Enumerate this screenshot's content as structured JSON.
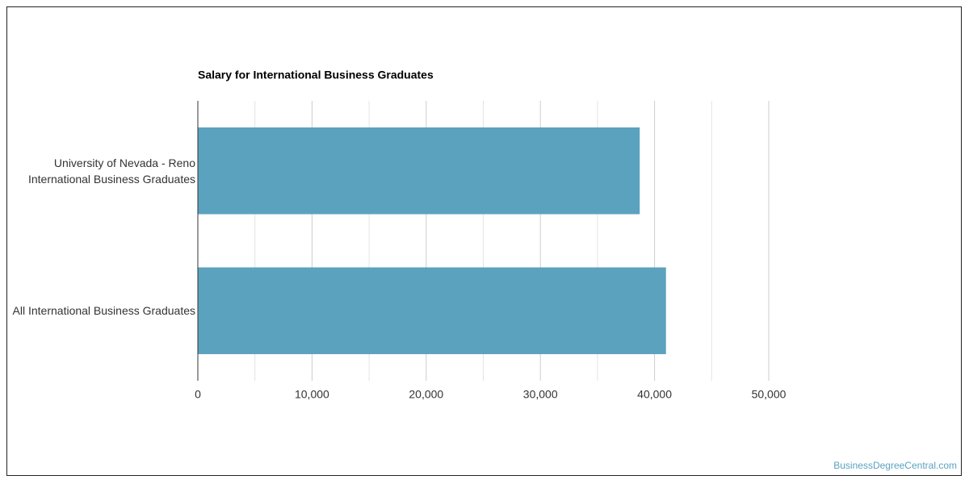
{
  "chart_data": {
    "type": "bar",
    "orientation": "horizontal",
    "title": "Salary for International Business Graduates",
    "categories": [
      "University of Nevada - Reno International Business Graduates",
      "All International Business Graduates"
    ],
    "values": [
      38700,
      41000
    ],
    "color": "#5ba2bf",
    "xlim": [
      0,
      50000
    ],
    "xticks": [
      0,
      {
        "value": 10000,
        "label": "10,000"
      },
      {
        "value": 20000,
        "label": "20,000"
      },
      {
        "value": 30000,
        "label": "30,000"
      },
      {
        "value": 40000,
        "label": "40,000"
      },
      {
        "value": 50000,
        "label": "50,000"
      }
    ],
    "minor_grid": [
      5000,
      15000,
      25000,
      35000,
      45000
    ],
    "grid": true
  },
  "footer": "BusinessDegreeCentral.com"
}
